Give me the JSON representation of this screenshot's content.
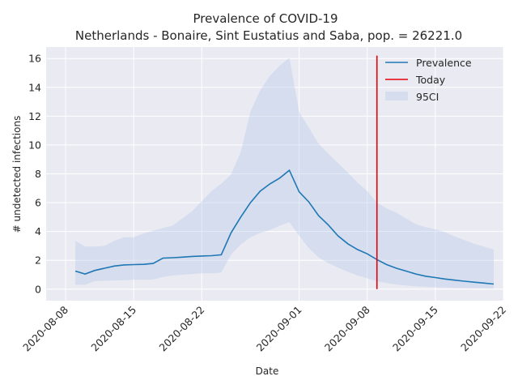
{
  "chart_data": {
    "type": "line",
    "title": "Prevalence of COVID-19",
    "subtitle": "Netherlands - Bonaire, Sint Eustatius and Saba, pop. = 26221.0",
    "xlabel": "Date",
    "ylabel": "# undetected infections",
    "xlim": [
      "2020-08-06",
      "2020-09-22"
    ],
    "ylim": [
      -0.8,
      16.8
    ],
    "x_ticks": [
      "2020-08-08",
      "2020-08-15",
      "2020-08-22",
      "2020-09-01",
      "2020-09-08",
      "2020-09-15",
      "2020-09-22"
    ],
    "y_ticks": [
      0,
      2,
      4,
      6,
      8,
      10,
      12,
      14,
      16
    ],
    "grid": true,
    "legend_position": "top-right",
    "legend": [
      "Prevalence",
      "Today",
      "95CI"
    ],
    "colors": {
      "prevalence": "#1f77b4",
      "today": "#e8000b",
      "ci": "#aec7e8",
      "plot_bg": "#eaeaf2",
      "grid": "#ffffff"
    },
    "series": [
      {
        "name": "Prevalence",
        "x": [
          "2020-08-09",
          "2020-08-10",
          "2020-08-11",
          "2020-08-12",
          "2020-08-13",
          "2020-08-14",
          "2020-08-15",
          "2020-08-16",
          "2020-08-17",
          "2020-08-18",
          "2020-08-19",
          "2020-08-20",
          "2020-08-21",
          "2020-08-22",
          "2020-08-23",
          "2020-08-24",
          "2020-08-25",
          "2020-08-26",
          "2020-08-27",
          "2020-08-28",
          "2020-08-29",
          "2020-08-30",
          "2020-08-31",
          "2020-09-01",
          "2020-09-02",
          "2020-09-03",
          "2020-09-04",
          "2020-09-05",
          "2020-09-06",
          "2020-09-07",
          "2020-09-08",
          "2020-09-09",
          "2020-09-10",
          "2020-09-11",
          "2020-09-12",
          "2020-09-13",
          "2020-09-14",
          "2020-09-15",
          "2020-09-16",
          "2020-09-17",
          "2020-09-18",
          "2020-09-19",
          "2020-09-20",
          "2020-09-21"
        ],
        "values": [
          1.25,
          1.05,
          1.3,
          1.45,
          1.6,
          1.68,
          1.7,
          1.72,
          1.78,
          2.15,
          2.18,
          2.22,
          2.27,
          2.3,
          2.32,
          2.38,
          3.9,
          5.0,
          6.0,
          6.8,
          7.3,
          7.7,
          8.25,
          6.75,
          6.05,
          5.1,
          4.45,
          3.7,
          3.15,
          2.75,
          2.45,
          2.05,
          1.7,
          1.45,
          1.25,
          1.05,
          0.9,
          0.8,
          0.7,
          0.62,
          0.55,
          0.48,
          0.42,
          0.35
        ]
      },
      {
        "name": "95CI",
        "x": [
          "2020-08-09",
          "2020-08-10",
          "2020-08-11",
          "2020-08-12",
          "2020-08-13",
          "2020-08-14",
          "2020-08-15",
          "2020-08-16",
          "2020-08-17",
          "2020-08-18",
          "2020-08-19",
          "2020-08-20",
          "2020-08-21",
          "2020-08-22",
          "2020-08-23",
          "2020-08-24",
          "2020-08-25",
          "2020-08-26",
          "2020-08-27",
          "2020-08-28",
          "2020-08-29",
          "2020-08-30",
          "2020-08-31",
          "2020-09-01",
          "2020-09-02",
          "2020-09-03",
          "2020-09-04",
          "2020-09-05",
          "2020-09-06",
          "2020-09-07",
          "2020-09-08",
          "2020-09-09",
          "2020-09-10",
          "2020-09-11",
          "2020-09-12",
          "2020-09-13",
          "2020-09-14",
          "2020-09-15",
          "2020-09-16",
          "2020-09-17",
          "2020-09-18",
          "2020-09-19",
          "2020-09-20",
          "2020-09-21"
        ],
        "lower": [
          0.3,
          0.3,
          0.55,
          0.58,
          0.6,
          0.62,
          0.65,
          0.65,
          0.68,
          0.85,
          0.95,
          1.0,
          1.05,
          1.1,
          1.1,
          1.15,
          2.4,
          3.1,
          3.6,
          3.9,
          4.1,
          4.4,
          4.65,
          3.7,
          2.85,
          2.2,
          1.8,
          1.5,
          1.2,
          0.95,
          0.75,
          0.55,
          0.42,
          0.32,
          0.25,
          0.2,
          0.16,
          0.13,
          0.11,
          0.09,
          0.08,
          0.07,
          0.06,
          0.05
        ],
        "upper": [
          3.35,
          2.95,
          2.95,
          3.0,
          3.35,
          3.6,
          3.6,
          3.85,
          4.05,
          4.25,
          4.4,
          4.9,
          5.4,
          6.1,
          6.8,
          7.3,
          7.95,
          9.5,
          12.3,
          13.8,
          14.8,
          15.5,
          16.05,
          12.3,
          11.2,
          10.1,
          9.4,
          8.75,
          8.1,
          7.4,
          6.8,
          6.0,
          5.6,
          5.3,
          4.9,
          4.5,
          4.3,
          4.15,
          3.95,
          3.65,
          3.4,
          3.15,
          2.95,
          2.75
        ]
      },
      {
        "name": "Today",
        "x": [
          "2020-09-09",
          "2020-09-09"
        ],
        "values": [
          0,
          16.2
        ]
      }
    ]
  }
}
